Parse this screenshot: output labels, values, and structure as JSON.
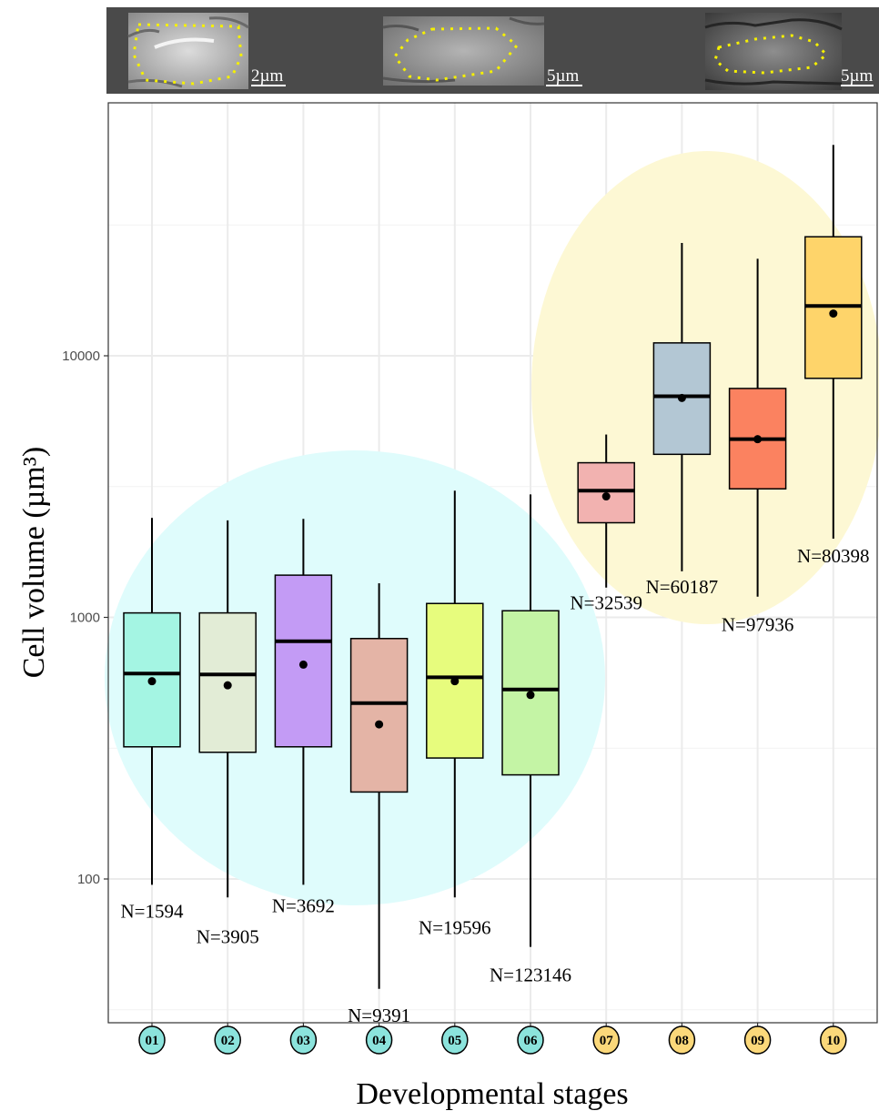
{
  "micrographs": {
    "panels": [
      {
        "scale_bar_label": "2µm"
      },
      {
        "scale_bar_label": "5µm"
      },
      {
        "scale_bar_label": "5µm"
      }
    ]
  },
  "chart_data": {
    "type": "box",
    "xlabel": "Developmental stages",
    "ylabel": "Cell volume (µm³)",
    "yscale": "log",
    "ylim": [
      30,
      80000
    ],
    "yticks": [
      100,
      1000,
      10000
    ],
    "ytick_labels": [
      "100",
      "1000",
      "10000"
    ],
    "grid": true,
    "categories": [
      "01",
      "02",
      "03",
      "04",
      "05",
      "06",
      "07",
      "08",
      "09",
      "10"
    ],
    "groups": [
      {
        "stages": [
          "01",
          "02",
          "03",
          "04",
          "05",
          "06"
        ],
        "color": "#dffcfc"
      },
      {
        "stages": [
          "07",
          "08",
          "09",
          "10"
        ],
        "color": "#fdf8d4"
      }
    ],
    "stage_marker_colors": {
      "early": "#8be3dc",
      "late": "#fbd87a"
    },
    "boxes": [
      {
        "stage": "01",
        "n_label": "N=1594",
        "whisker_low": 95,
        "q1": 320,
        "median": 610,
        "mean": 570,
        "q3": 1040,
        "whisker_high": 2400,
        "color": "#a4f5e3"
      },
      {
        "stage": "02",
        "n_label": "N=3905",
        "whisker_low": 85,
        "q1": 305,
        "median": 605,
        "mean": 550,
        "q3": 1040,
        "whisker_high": 2350,
        "color": "#e2ecd6"
      },
      {
        "stage": "03",
        "n_label": "N=3692",
        "whisker_low": 95,
        "q1": 320,
        "median": 810,
        "mean": 660,
        "q3": 1450,
        "whisker_high": 2380,
        "color": "#c39bf5"
      },
      {
        "stage": "04",
        "n_label": "N=9391",
        "whisker_low": 38,
        "q1": 215,
        "median": 470,
        "mean": 390,
        "q3": 830,
        "whisker_high": 1350,
        "color": "#e4b4a6"
      },
      {
        "stage": "05",
        "n_label": "N=19596",
        "whisker_low": 85,
        "q1": 290,
        "median": 590,
        "mean": 570,
        "q3": 1130,
        "whisker_high": 3050,
        "color": "#e7fc7d"
      },
      {
        "stage": "06",
        "n_label": "N=123146",
        "whisker_low": 55,
        "q1": 250,
        "median": 530,
        "mean": 505,
        "q3": 1060,
        "whisker_high": 2950,
        "color": "#c4f4a5"
      },
      {
        "stage": "07",
        "n_label": "N=32539",
        "whisker_low": 1300,
        "q1": 2300,
        "median": 3050,
        "mean": 2900,
        "q3": 3900,
        "whisker_high": 5000,
        "color": "#f2b2b0"
      },
      {
        "stage": "08",
        "n_label": "N=60187",
        "whisker_low": 1500,
        "q1": 4200,
        "median": 7000,
        "mean": 6900,
        "q3": 11200,
        "whisker_high": 27000,
        "color": "#b3c7d4"
      },
      {
        "stage": "09",
        "n_label": "N=97936",
        "whisker_low": 1200,
        "q1": 3100,
        "median": 4800,
        "mean": 4800,
        "q3": 7500,
        "whisker_high": 23500,
        "color": "#fb8260"
      },
      {
        "stage": "10",
        "n_label": "N=80398",
        "whisker_low": 2000,
        "q1": 8200,
        "median": 15500,
        "mean": 14500,
        "q3": 28500,
        "whisker_high": 64000,
        "color": "#fed46a"
      }
    ]
  }
}
